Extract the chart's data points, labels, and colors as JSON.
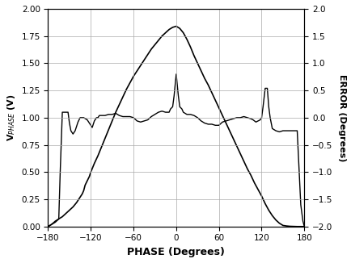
{
  "title": "",
  "xlabel": "PHASE (Degrees)",
  "ylabel_left": "V$_{PHASE}$ (V)",
  "ylabel_right": "ERROR (Degrees)",
  "xlim": [
    -180,
    180
  ],
  "ylim_left": [
    0,
    2.0
  ],
  "ylim_right": [
    -2.0,
    2.0
  ],
  "xticks": [
    -180,
    -120,
    -60,
    0,
    60,
    120,
    180
  ],
  "yticks_left": [
    0,
    0.25,
    0.5,
    0.75,
    1.0,
    1.25,
    1.5,
    1.75,
    2.0
  ],
  "yticks_right": [
    -2.0,
    -1.5,
    -1.0,
    -0.5,
    0.0,
    0.5,
    1.0,
    1.5,
    2.0
  ],
  "main_curve_x": [
    -180,
    -175,
    -170,
    -165,
    -160,
    -155,
    -150,
    -145,
    -140,
    -135,
    -132,
    -130,
    -128,
    -125,
    -122,
    -120,
    -115,
    -110,
    -105,
    -100,
    -95,
    -90,
    -85,
    -80,
    -75,
    -70,
    -65,
    -60,
    -55,
    -50,
    -45,
    -40,
    -35,
    -30,
    -25,
    -20,
    -15,
    -10,
    -5,
    0,
    5,
    10,
    15,
    20,
    25,
    30,
    35,
    40,
    45,
    50,
    55,
    60,
    65,
    70,
    75,
    80,
    85,
    90,
    95,
    100,
    105,
    110,
    115,
    120,
    125,
    130,
    135,
    140,
    145,
    150,
    155,
    160,
    165,
    170,
    175,
    180
  ],
  "main_curve_y": [
    0.0,
    0.02,
    0.04,
    0.07,
    0.09,
    0.12,
    0.15,
    0.18,
    0.22,
    0.27,
    0.3,
    0.33,
    0.38,
    0.42,
    0.46,
    0.5,
    0.58,
    0.65,
    0.73,
    0.81,
    0.89,
    0.97,
    1.05,
    1.12,
    1.19,
    1.26,
    1.32,
    1.38,
    1.43,
    1.48,
    1.53,
    1.58,
    1.63,
    1.67,
    1.71,
    1.75,
    1.78,
    1.81,
    1.83,
    1.84,
    1.82,
    1.78,
    1.72,
    1.65,
    1.57,
    1.5,
    1.43,
    1.36,
    1.3,
    1.23,
    1.16,
    1.09,
    1.02,
    0.95,
    0.88,
    0.81,
    0.74,
    0.67,
    0.6,
    0.53,
    0.47,
    0.4,
    0.34,
    0.28,
    0.21,
    0.15,
    0.1,
    0.06,
    0.03,
    0.01,
    0.005,
    0.002,
    0.001,
    0.0,
    0.0,
    0.0
  ],
  "error_curve_x": [
    -180,
    -175,
    -170,
    -165,
    -163,
    -160,
    -157,
    -155,
    -152,
    -150,
    -148,
    -145,
    -142,
    -140,
    -138,
    -135,
    -130,
    -125,
    -120,
    -118,
    -115,
    -112,
    -110,
    -108,
    -105,
    -100,
    -95,
    -90,
    -85,
    -80,
    -75,
    -70,
    -65,
    -60,
    -55,
    -50,
    -45,
    -40,
    -35,
    -30,
    -25,
    -20,
    -15,
    -10,
    -8,
    -5,
    -3,
    0,
    3,
    5,
    8,
    10,
    15,
    20,
    25,
    30,
    35,
    40,
    45,
    50,
    55,
    60,
    65,
    70,
    75,
    80,
    85,
    90,
    95,
    100,
    105,
    108,
    110,
    112,
    115,
    118,
    120,
    122,
    125,
    128,
    130,
    132,
    135,
    140,
    145,
    150,
    155,
    160,
    165,
    170,
    175,
    178,
    180
  ],
  "error_curve_y": [
    0.0,
    0.02,
    0.05,
    0.07,
    0.5,
    1.05,
    1.05,
    1.05,
    1.05,
    0.95,
    0.88,
    0.85,
    0.88,
    0.92,
    0.96,
    1.0,
    1.0,
    0.98,
    0.93,
    0.91,
    0.97,
    1.0,
    1.0,
    1.02,
    1.02,
    1.02,
    1.03,
    1.03,
    1.04,
    1.02,
    1.01,
    1.01,
    1.01,
    1.0,
    0.97,
    0.96,
    0.97,
    0.98,
    1.01,
    1.03,
    1.05,
    1.06,
    1.05,
    1.05,
    1.08,
    1.1,
    1.2,
    1.4,
    1.2,
    1.1,
    1.08,
    1.05,
    1.03,
    1.03,
    1.02,
    1.0,
    0.97,
    0.95,
    0.94,
    0.94,
    0.93,
    0.93,
    0.96,
    0.97,
    0.98,
    0.99,
    1.0,
    1.0,
    1.01,
    1.0,
    0.99,
    0.98,
    0.97,
    0.96,
    0.97,
    0.98,
    1.0,
    1.1,
    1.27,
    1.27,
    1.1,
    1.0,
    0.9,
    0.88,
    0.87,
    0.88,
    0.88,
    0.88,
    0.88,
    0.88,
    0.2,
    0.05,
    0.0
  ],
  "line_color": "#000000",
  "background_color": "#ffffff",
  "grid_color": "#aaaaaa"
}
